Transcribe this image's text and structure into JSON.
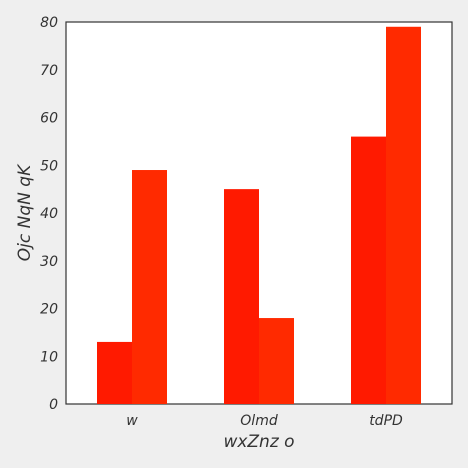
{
  "chart_data": {
    "type": "bar",
    "title": "",
    "xlabel": "wxZnz o",
    "ylabel": "Ojc  NqN qK",
    "categories": [
      "w",
      "Olmd",
      "tdPD"
    ],
    "series": [
      {
        "values": [
          13,
          45,
          56
        ],
        "color": "#ff1a00"
      },
      {
        "values": [
          49,
          18,
          79
        ],
        "color": "#ff2a00"
      }
    ],
    "ylim": [
      0,
      80
    ],
    "yticks": [
      0,
      10,
      20,
      30,
      40,
      50,
      60,
      70,
      80
    ],
    "grid": false,
    "legend": "none"
  }
}
